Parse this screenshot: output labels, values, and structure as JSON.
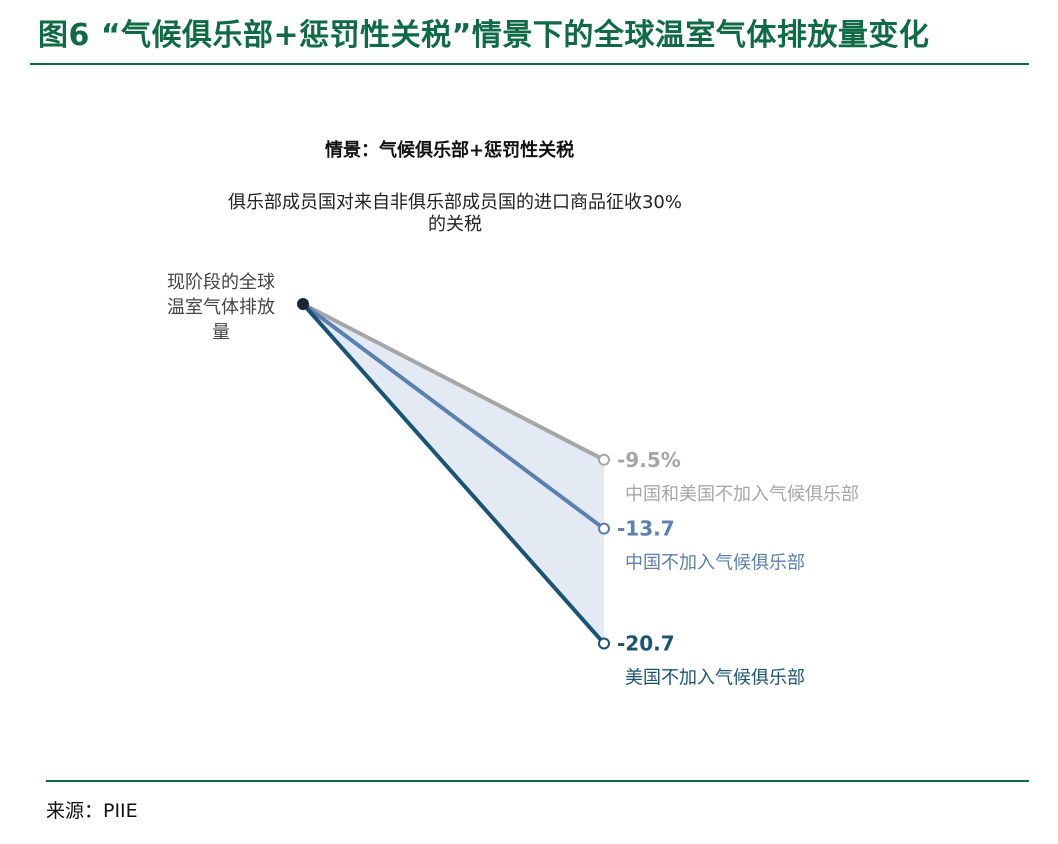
{
  "figure_title": "图6 “气候俱乐部+惩罚性关税”情景下的全球温室气体排放量变化",
  "source": "来源：PIIE",
  "chart_data": {
    "type": "line",
    "title": "情景：气候俱乐部+惩罚性关税",
    "subtitle": "俱乐部成员国对来自非俱乐部成员国的进口商品征收30%的关税",
    "origin_label": "现阶段的全球温室气体排放量",
    "ylim": [
      -22,
      0
    ],
    "series": [
      {
        "name": "中国和美国不加入气候俱乐部",
        "start": 0,
        "end": -9.5,
        "value_label": "-9.5%",
        "color": "#a6a6a6"
      },
      {
        "name": "中国不加入气候俱乐部",
        "start": 0,
        "end": -13.7,
        "value_label": "-13.7",
        "color": "#5b7fae"
      },
      {
        "name": "美国不加入气候俱乐部",
        "start": 0,
        "end": -20.7,
        "value_label": "-20.7",
        "color": "#1b5374"
      }
    ],
    "fill_color": "#e3eaf4",
    "origin_color": "#1a2533"
  }
}
